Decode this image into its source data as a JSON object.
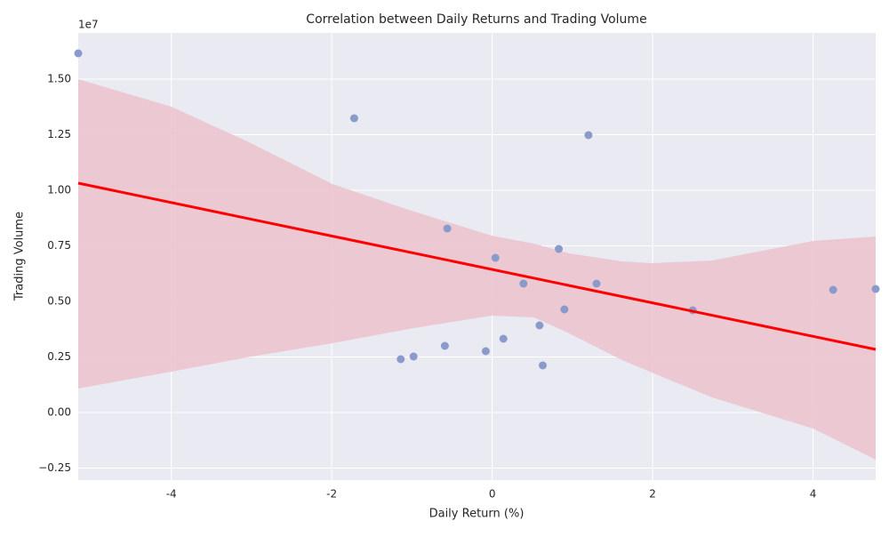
{
  "chart_data": {
    "type": "scatter",
    "title": "Correlation between Daily Returns and Trading Volume",
    "x_label": "Daily Return (%)",
    "y_label": "Trading Volume",
    "y_offset_label": "1e7",
    "series": [
      {
        "color": "#8a9bcb",
        "x": [
          -5.16,
          -1.72,
          1.2,
          -0.56,
          0.83,
          0.04,
          0.39,
          1.3,
          4.25,
          4.78,
          0.9,
          2.5,
          0.59,
          0.14,
          -0.59,
          -0.08,
          -0.98,
          -1.14,
          0.63
        ],
        "values": [
          16160000,
          13240000,
          12480000,
          8280000,
          7360000,
          6960000,
          5800000,
          5800000,
          5520000,
          5560000,
          4640000,
          4600000,
          3920000,
          3320000,
          3000000,
          2760000,
          2520000,
          2400000,
          2120000
        ]
      }
    ],
    "regression": {
      "color": "#ff0000",
      "x": [
        -5.16,
        4.78
      ],
      "values": [
        10320000,
        2840000
      ]
    },
    "band": {
      "color": "#ecc4ce",
      "x": [
        -5.16,
        -4.0,
        -3.03,
        -1.99,
        -1.04,
        -0.01,
        0.52,
        0.96,
        1.62,
        1.99,
        2.74,
        4.0,
        4.78
      ],
      "upper": [
        15000000,
        13760000,
        12160000,
        10280000,
        9120000,
        7960000,
        7600000,
        7160000,
        6800000,
        6720000,
        6840000,
        7720000,
        7920000
      ],
      "lower": [
        1080000,
        1840000,
        2500000,
        3120000,
        3760000,
        4360000,
        4280000,
        3560000,
        2360000,
        1800000,
        680000,
        -720000,
        -2120000
      ]
    },
    "xlim": [
      -5.16,
      4.78
    ],
    "ylim": [
      -3040000,
      17080000
    ],
    "xticks": [
      -4,
      -2,
      0,
      2,
      4
    ],
    "yticks": [
      {
        "value": -2500000,
        "label": "−0.25"
      },
      {
        "value": 0,
        "label": "0.00"
      },
      {
        "value": 2500000,
        "label": "0.25"
      },
      {
        "value": 5000000,
        "label": "0.50"
      },
      {
        "value": 7500000,
        "label": "0.75"
      },
      {
        "value": 10000000,
        "label": "1.00"
      },
      {
        "value": 12500000,
        "label": "1.25"
      },
      {
        "value": 15000000,
        "label": "1.50"
      }
    ],
    "grid": true
  }
}
